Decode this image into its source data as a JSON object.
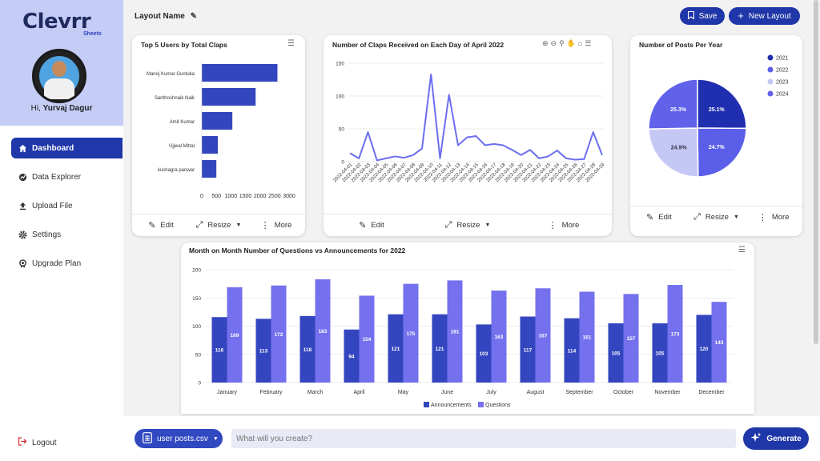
{
  "sidebar": {
    "logo": "Clevrr",
    "logo_sub": "Sheets",
    "greeting_prefix": "Hi,",
    "user_name": "Yurvaj Dagur",
    "nav": [
      {
        "label": "Dashboard",
        "icon": "home-icon"
      },
      {
        "label": "Data Explorer",
        "icon": "explore-icon"
      },
      {
        "label": "Upload File",
        "icon": "upload-icon"
      },
      {
        "label": "Settings",
        "icon": "gear-icon"
      },
      {
        "label": "Upgrade Plan",
        "icon": "badge-icon"
      }
    ],
    "logout": "Logout"
  },
  "header": {
    "layout_name": "Layout Name",
    "save_label": "Save",
    "new_layout_label": "New Layout"
  },
  "card_actions": {
    "edit": "Edit",
    "resize": "Resize",
    "more": "More"
  },
  "bottom": {
    "file_label": "user posts.csv",
    "prompt_placeholder": "What will you create?",
    "generate_label": "Generate"
  },
  "colors": {
    "primary": "#1f37a8",
    "bar_blue": "#3346bf",
    "line": "#6b6ef0",
    "announce": "#3346bf",
    "questions": "#7470ee",
    "pie": [
      "#1f2fb0",
      "#5b5ee8",
      "#c5c8f5",
      "#6062ea"
    ]
  },
  "chart_data": [
    {
      "type": "bar",
      "orientation": "horizontal",
      "title": "Top 5 Users by Total Claps",
      "categories": [
        "Manoj Kumar Guntuka",
        "Santhoshnaik Naik",
        "Amit Kumar",
        "Ujjwal Mittal",
        "kushagra panwar"
      ],
      "values": [
        2600,
        1850,
        1050,
        550,
        500
      ],
      "xlim": [
        0,
        3000
      ],
      "xticks": [
        "0",
        "500",
        "1000",
        "1500",
        "2000",
        "2500",
        "3000"
      ]
    },
    {
      "type": "line",
      "title": "Number of Claps Received on Each Day of April 2022",
      "x": [
        "2022-04-01",
        "2022-04-02",
        "2022-04-03",
        "2022-04-04",
        "2022-04-05",
        "2022-04-06",
        "2022-04-07",
        "2022-04-08",
        "2022-04-09",
        "2022-04-10",
        "2022-04-11",
        "2022-04-12",
        "2022-04-13",
        "2022-04-14",
        "2022-04-15",
        "2022-04-16",
        "2022-04-17",
        "2022-04-18",
        "2022-04-19",
        "2022-04-20",
        "2022-04-21",
        "2022-04-22",
        "2022-04-23",
        "2022-04-24",
        "2022-04-25",
        "2022-04-26",
        "2022-04-27",
        "2022-04-28",
        "2022-04-29"
      ],
      "values": [
        13,
        5,
        45,
        2,
        5,
        8,
        6,
        10,
        20,
        133,
        5,
        102,
        25,
        37,
        39,
        25,
        27,
        25,
        18,
        10,
        18,
        5,
        8,
        17,
        5,
        3,
        4,
        45,
        10
      ],
      "ylim": [
        0,
        150
      ],
      "yticks": [
        "0",
        "50",
        "100",
        "150"
      ]
    },
    {
      "type": "pie",
      "title": "Number of Posts Per Year",
      "labels": [
        "2021",
        "2022",
        "2023",
        "2024"
      ],
      "values": [
        25.1,
        24.7,
        24.9,
        25.3
      ],
      "value_labels": [
        "25.1%",
        "24.7%",
        "24.9%",
        "25.3%"
      ],
      "legend": "right"
    },
    {
      "type": "bar",
      "title": "Month on Month Number of Questions vs Announcements for 2022",
      "categories": [
        "January",
        "February",
        "March",
        "April",
        "May",
        "June",
        "July",
        "August",
        "September",
        "October",
        "November",
        "December"
      ],
      "series": [
        {
          "name": "Announcements",
          "values": [
            116,
            113,
            118,
            94,
            121,
            121,
            103,
            117,
            114,
            105,
            105,
            120
          ]
        },
        {
          "name": "Questions",
          "values": [
            169,
            172,
            183,
            154,
            175,
            181,
            163,
            167,
            161,
            157,
            173,
            143
          ]
        }
      ],
      "ylim": [
        0,
        200
      ],
      "yticks": [
        "0",
        "50",
        "100",
        "150",
        "200"
      ],
      "legend": "bottom"
    }
  ]
}
